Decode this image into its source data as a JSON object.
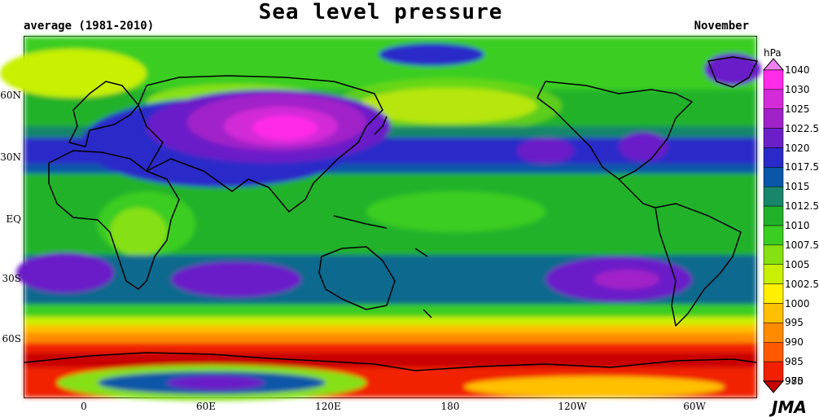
{
  "title": "Sea level pressure",
  "subtitle_left": "average (1981-2010)",
  "subtitle_right": "November",
  "lat_labels": [
    "60N",
    "30N",
    "EQ",
    "30S",
    "60S"
  ],
  "lon_labels": [
    "0",
    "60E",
    "120E",
    "180",
    "120W",
    "60W"
  ],
  "unit": "hPa",
  "legend": {
    "levels": [
      "1040",
      "1030",
      "1025",
      "1022.5",
      "1020",
      "1017.5",
      "1015",
      "1012.5",
      "1010",
      "1007.5",
      "1005",
      "1002.5",
      "1000",
      "995",
      "990",
      "985",
      "980",
      "975"
    ],
    "colors": [
      "#f07ff0",
      "#ff2ce8",
      "#d22bd7",
      "#a022c8",
      "#6a1fc8",
      "#2a2ac8",
      "#0a56a8",
      "#17866b",
      "#22b22a",
      "#3acd22",
      "#86e012",
      "#c8f000",
      "#fff000",
      "#ffc000",
      "#ff8c00",
      "#ff5a00",
      "#f02000",
      "#c80000"
    ]
  },
  "credit": "JMA"
}
